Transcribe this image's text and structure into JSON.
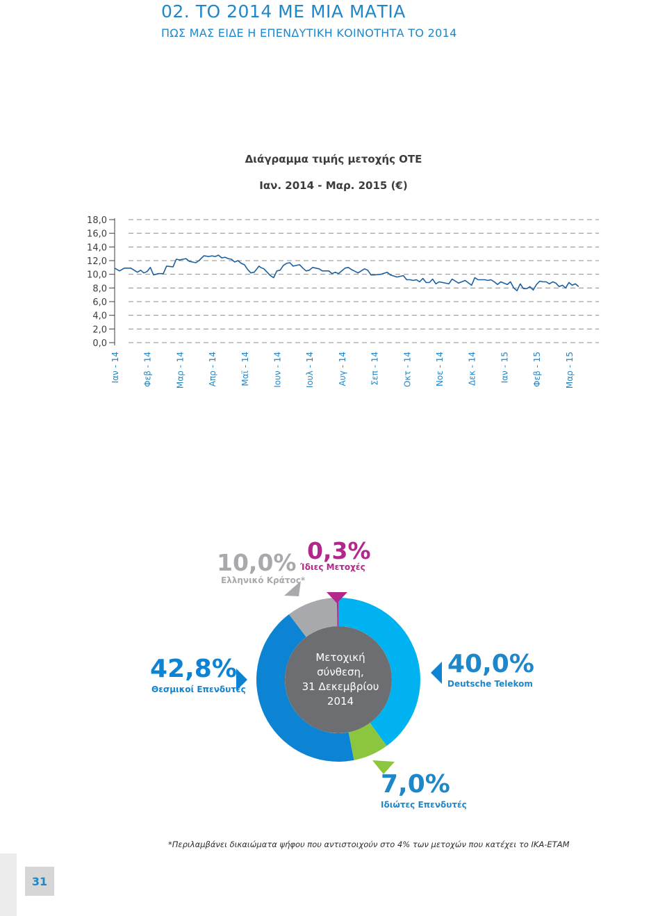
{
  "header": {
    "title": "02. ΤΟ 2014 ΜΕ ΜΙΑ ΜΑΤΙΑ",
    "subtitle": "ΠΩΣ ΜΑΣ ΕΙΔΕ Η ΕΠΕΝΔΥΤΙΚΗ ΚΟΙΝΟΤΗΤΑ ΤΟ 2014"
  },
  "colors": {
    "brand_blue": "#1e87c9",
    "line": "#1a5f9e",
    "grid": "#8c8c8c",
    "deutsche_telekom": "#00b2ef",
    "private_investors": "#8cc63f",
    "institutional": "#0d83d3",
    "greek_state": "#a8a9ad",
    "own_shares": "#b3268c",
    "center": "#6d6e71"
  },
  "chart_data": [
    {
      "type": "line",
      "title": "Διάγραμμα τιμής μετοχής ΟΤΕ",
      "subtitle": "Ιαν. 2014 - Μαρ. 2015 (€)",
      "ylim": [
        0,
        18
      ],
      "yticks": [
        "18,0",
        "16,0",
        "14,0",
        "12,0",
        "10,0",
        "8,0",
        "6,0",
        "4,0",
        "2,0",
        "0,0"
      ],
      "ytick_values": [
        18,
        16,
        14,
        12,
        10,
        8,
        6,
        4,
        2,
        0
      ],
      "x_labels": [
        "Ιαν - 14",
        "Φεβ - 14",
        "Μαρ - 14",
        "Απρ - 14",
        "Μαϊ - 14",
        "Ιουν - 14",
        "Ιουλ - 14",
        "Αυγ - 14",
        "Σεπ - 14",
        "Οκτ - 14",
        "Νοε - 14",
        "Δεκ - 14",
        "Ιαν - 15",
        "Φεβ - 15",
        "Μαρ - 15"
      ],
      "grid": "dashed-horizontal",
      "series": [
        {
          "x": [
            0,
            0.15,
            0.3,
            0.5,
            0.7,
            0.8,
            0.9,
            1.0,
            1.1,
            1.2,
            1.35,
            1.5,
            1.6,
            1.8,
            1.9,
            2.0,
            2.2,
            2.3,
            2.5,
            2.6,
            2.75,
            2.9,
            3.0,
            3.1,
            3.2,
            3.3,
            3.4,
            3.5,
            3.6,
            3.7,
            3.8,
            3.9,
            4.0,
            4.1,
            4.2,
            4.3,
            4.45,
            4.5,
            4.6,
            4.7,
            4.8,
            4.9,
            5.0,
            5.1,
            5.2,
            5.3,
            5.4,
            5.5,
            5.6,
            5.7,
            5.8,
            5.9,
            6.0,
            6.1,
            6.2,
            6.3,
            6.4,
            6.5,
            6.6,
            6.7,
            6.8,
            6.9,
            7.0,
            7.1,
            7.2,
            7.3,
            7.5,
            7.6,
            7.7,
            7.8,
            7.9,
            8.0,
            8.2,
            8.4,
            8.5,
            8.7,
            8.8,
            8.9,
            9.0,
            9.1,
            9.2,
            9.3,
            9.4,
            9.5,
            9.6,
            9.7,
            9.8,
            9.9,
            10.0,
            10.2,
            10.3,
            10.4,
            10.5,
            10.6,
            10.8,
            11.0,
            11.1,
            11.2,
            11.3,
            11.4,
            11.5,
            11.6,
            11.7,
            11.8,
            11.9,
            12.0,
            12.1,
            12.2,
            12.3,
            12.4,
            12.5,
            12.6,
            12.7,
            12.8,
            12.9,
            13.0,
            13.1,
            13.2,
            13.3,
            13.4,
            13.5,
            13.6,
            13.7,
            13.8,
            13.9,
            14.0,
            14.1,
            14.2,
            14.3
          ],
          "values": [
            10.9,
            10.5,
            10.9,
            10.9,
            10.3,
            10.6,
            10.2,
            10.4,
            11.0,
            9.9,
            10.1,
            10.1,
            11.2,
            11.1,
            12.2,
            12.1,
            12.3,
            11.9,
            11.7,
            12.0,
            12.7,
            12.6,
            12.7,
            12.6,
            12.8,
            12.4,
            12.5,
            12.3,
            12.2,
            11.8,
            12.0,
            11.6,
            11.4,
            10.7,
            10.2,
            10.3,
            11.2,
            11.0,
            10.8,
            10.3,
            9.8,
            9.5,
            10.5,
            10.6,
            11.3,
            11.6,
            11.7,
            11.2,
            11.3,
            11.4,
            10.9,
            10.5,
            10.6,
            11.0,
            10.9,
            10.8,
            10.5,
            10.5,
            10.5,
            10.1,
            10.3,
            10.1,
            10.5,
            10.9,
            11.0,
            10.7,
            10.2,
            10.5,
            10.8,
            10.6,
            9.9,
            9.9,
            10.0,
            10.3,
            9.9,
            9.6,
            9.7,
            9.8,
            9.2,
            9.2,
            9.1,
            9.2,
            8.9,
            9.4,
            8.8,
            8.8,
            9.3,
            8.6,
            8.9,
            8.7,
            8.6,
            9.3,
            9.0,
            8.7,
            9.1,
            8.4,
            9.5,
            9.2,
            9.2,
            9.2,
            9.1,
            9.2,
            8.9,
            8.5,
            8.9,
            8.7,
            8.5,
            8.9,
            8.0,
            7.6,
            8.6,
            7.9,
            7.9,
            8.2,
            7.7,
            8.5,
            9.0,
            8.9,
            8.9,
            8.6,
            8.9,
            8.7,
            8.2,
            8.4,
            8.0,
            8.8,
            8.4,
            8.6,
            8.2
          ]
        }
      ]
    },
    {
      "type": "pie",
      "title": "Μετοχική σύνθεση, 31 Δεκεμβρίου 2014",
      "slices": [
        {
          "key": "deutsche_telekom",
          "label": "Deutsche Telekom",
          "value": 40.0,
          "display": "40,0%"
        },
        {
          "key": "private_investors",
          "label": "Ιδιώτες Επενδυτές",
          "value": 7.0,
          "display": "7,0%"
        },
        {
          "key": "institutional",
          "label": "Θεσμικοί Επενδυτές",
          "value": 42.8,
          "display": "42,8%"
        },
        {
          "key": "greek_state",
          "label": "Ελληνικό Κράτος*",
          "value": 10.0,
          "display": "10,0%"
        },
        {
          "key": "own_shares",
          "label": "Ίδιες Μετοχές",
          "value": 0.3,
          "display": "0,3%"
        }
      ]
    }
  ],
  "donut_center": {
    "line1": "Μετοχική",
    "line2": "σύνθεση,",
    "line3": "31 Δεκεμβρίου",
    "line4": "2014"
  },
  "footnote": "*Περιλαμβάνει δικαιώματα ψήφου που αντιστοιχούν στο 4% των μετοχών που κατέχει το ΙΚΑ-ΕΤΑΜ",
  "page_number": "31"
}
